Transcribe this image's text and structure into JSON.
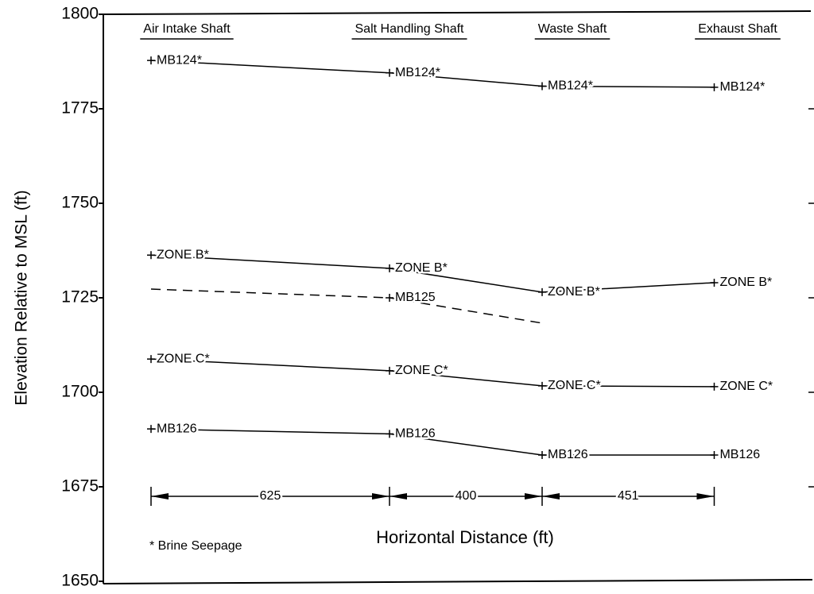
{
  "chart_data": {
    "type": "line",
    "xlabel": "Horizontal Distance (ft)",
    "ylabel": "Elevation Relative to MSL (ft)",
    "note": "* Brine Seepage",
    "categories": [
      "Air Intake Shaft",
      "Salt Handling Shaft",
      "Waste Shaft",
      "Exhaust Shaft"
    ],
    "distances": [
      625,
      400,
      451
    ],
    "ylim": [
      1650,
      1800
    ],
    "yticks": [
      1650,
      1675,
      1700,
      1725,
      1750,
      1775,
      1800
    ],
    "series": [
      {
        "color": "#000",
        "values": [
          1787.8,
          1784.5,
          1781,
          1780.7
        ],
        "labels": [
          "MB124*",
          "MB124*",
          "MB124*",
          "MB124*"
        ]
      },
      {
        "color": "#000",
        "values": [
          1736.3,
          1732.8,
          1726.5,
          1729
        ],
        "labels": [
          "ZONE B*",
          "ZONE B*",
          "ZONE B*",
          "ZONE B*"
        ]
      },
      {
        "color": "#000",
        "dashed": true,
        "values": [
          1727.3,
          1725,
          1718.3,
          null
        ],
        "labels": [
          null,
          "MB125",
          null,
          null
        ]
      },
      {
        "color": "#000",
        "values": [
          1708.8,
          1705.7,
          1701.7,
          1701.5
        ],
        "labels": [
          "ZONE C*",
          "ZONE C*",
          "ZONE C*",
          "ZONE C*"
        ]
      },
      {
        "color": "#000",
        "values": [
          1690.3,
          1689,
          1683.4,
          1683.4
        ],
        "labels": [
          "MB126",
          "MB126",
          "MB126",
          "MB126"
        ]
      }
    ]
  }
}
